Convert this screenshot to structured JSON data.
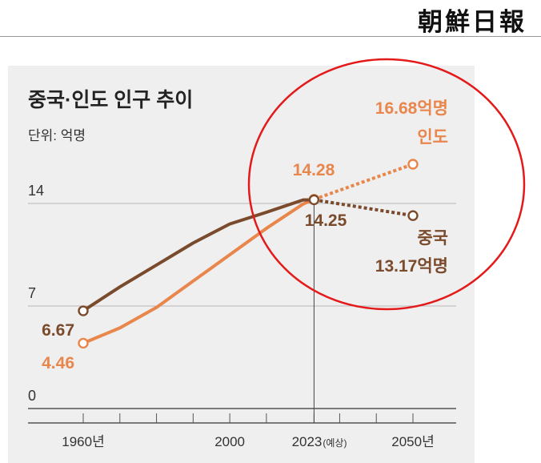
{
  "masthead": "朝鮮日報",
  "chart_data": {
    "type": "line",
    "title": "중국·인도 인구 추이",
    "unit_label": "단위: 억명",
    "y_ticks": [
      0,
      7,
      14
    ],
    "ylim": [
      0,
      14
    ],
    "x_ticks": [
      {
        "value": 1960,
        "label": "1960년",
        "note": ""
      },
      {
        "value": 2000,
        "label": "2000",
        "note": ""
      },
      {
        "value": 2023,
        "label": "2023",
        "note": "(예상)"
      },
      {
        "value": 2050,
        "label": "2050년",
        "note": ""
      }
    ],
    "minor_x_ticks": [
      1960,
      1970,
      1980,
      1990,
      2000,
      2010,
      2023,
      2030,
      2040,
      2050
    ],
    "colors": {
      "china": "#7a4a2c",
      "india": "#e8864c",
      "highlight_circle": "#e41a1a"
    },
    "series": [
      {
        "key": "china",
        "name": "중국",
        "points": [
          [
            1960,
            6.67
          ],
          [
            1970,
            8.3
          ],
          [
            1980,
            9.8
          ],
          [
            1990,
            11.3
          ],
          [
            2000,
            12.6
          ],
          [
            2010,
            13.4
          ],
          [
            2020,
            14.24
          ],
          [
            2023,
            14.25
          ]
        ],
        "projection": [
          [
            2023,
            14.25
          ],
          [
            2050,
            13.17
          ]
        ],
        "labels": [
          {
            "x": 1960,
            "y": 6.67,
            "text": "6.67"
          },
          {
            "x": 2023,
            "y": 14.25,
            "text": "14.25"
          },
          {
            "x": 2050,
            "y": 13.17,
            "text": "중국"
          },
          {
            "x": 2050,
            "y": 13.17,
            "text": "13.17억명"
          }
        ]
      },
      {
        "key": "india",
        "name": "인도",
        "points": [
          [
            1960,
            4.46
          ],
          [
            1970,
            5.5
          ],
          [
            1980,
            6.9
          ],
          [
            1990,
            8.7
          ],
          [
            2000,
            10.5
          ],
          [
            2010,
            12.3
          ],
          [
            2020,
            13.96
          ],
          [
            2023,
            14.28
          ]
        ],
        "projection": [
          [
            2023,
            14.28
          ],
          [
            2050,
            16.68
          ]
        ],
        "labels": [
          {
            "x": 1960,
            "y": 4.46,
            "text": "4.46"
          },
          {
            "x": 2023,
            "y": 14.28,
            "text": "14.28"
          },
          {
            "x": 2050,
            "y": 16.68,
            "text": "16.68억명"
          },
          {
            "x": 2050,
            "y": 16.68,
            "text": "인도"
          }
        ]
      }
    ]
  }
}
